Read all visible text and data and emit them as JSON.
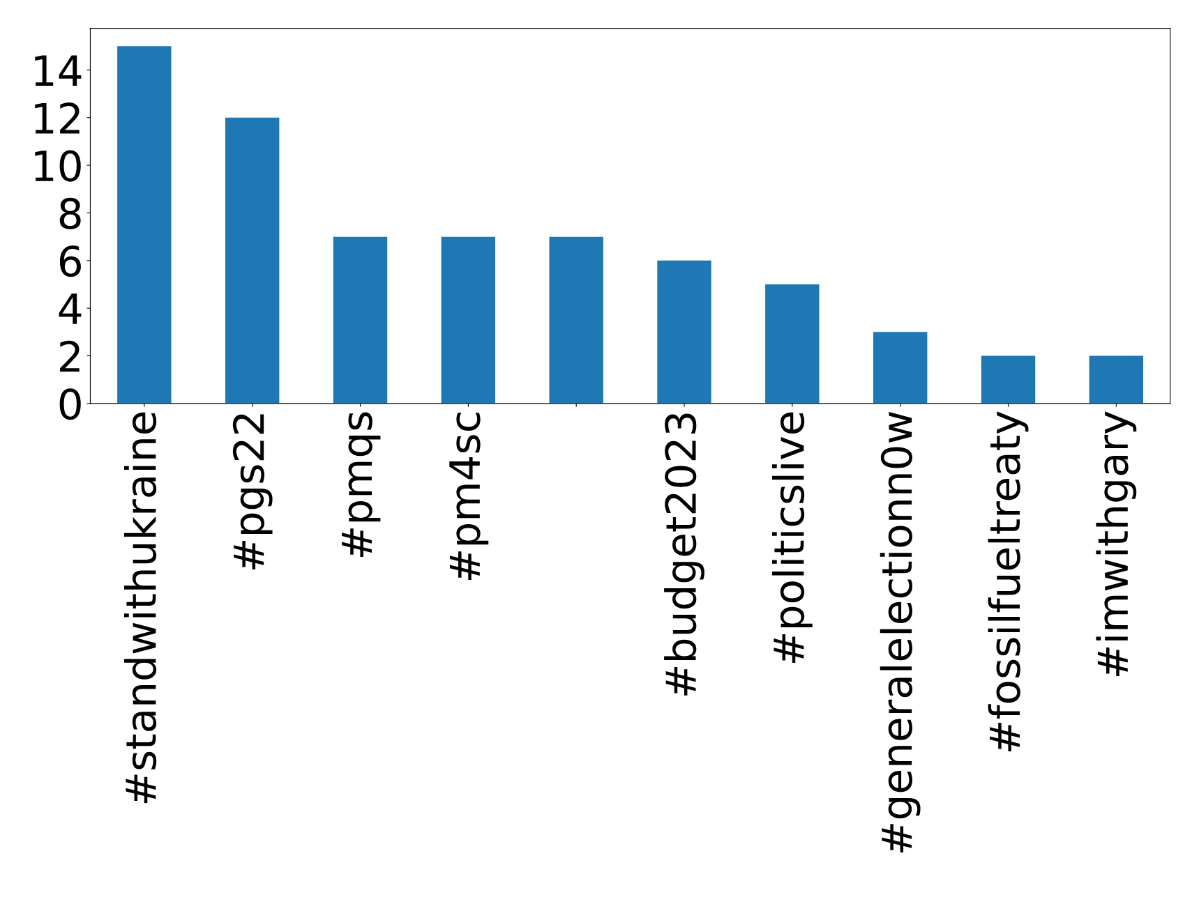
{
  "chart_data": {
    "type": "bar",
    "categories": [
      "#standwithukraine",
      "#pgs22",
      "#pmqs",
      "#pm4sc",
      null,
      "#budget2023",
      "#politicslive",
      "#generalelectionn0w",
      "#fossilfueltreaty",
      "#imwithgary"
    ],
    "values": [
      15,
      12,
      7,
      7,
      7,
      6,
      5,
      3,
      2,
      2
    ],
    "color": "#1f77b4",
    "ylim": [
      0,
      15.75
    ],
    "yticks": [
      0,
      2,
      4,
      6,
      8,
      10,
      12,
      14
    ],
    "grid": false,
    "legend": false
  }
}
